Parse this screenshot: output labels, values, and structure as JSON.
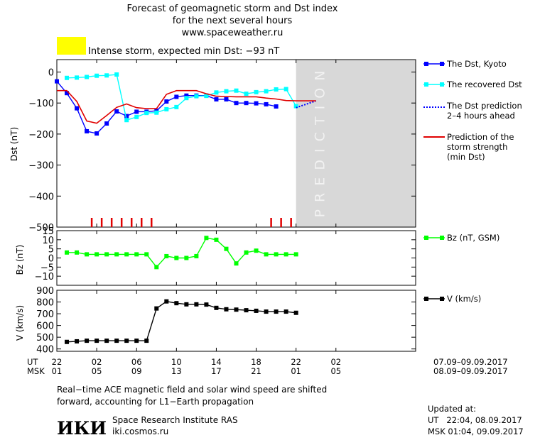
{
  "title": {
    "line1": "Forecast of geomagnetic storm and Dst index",
    "line2": "for the next several hours",
    "line3": "www.spaceweather.ru"
  },
  "alert": {
    "text": "Intense storm, expected min Dst: −93 nT",
    "color": "#ffff00"
  },
  "chart_data": [
    {
      "type": "line",
      "ylabel": "Dst (nT)",
      "ylim": [
        -500,
        40
      ],
      "yticks": [
        "0",
        "−100",
        "−200",
        "−300",
        "−400",
        "−500"
      ],
      "xlim": [
        22,
        58
      ],
      "prediction_text": "PREDICTION",
      "prediction_region": [
        46,
        58
      ],
      "markers_red_x": [
        25.5,
        26.5,
        27.5,
        28.5,
        29.5,
        30.5,
        31.5,
        43.5,
        44.5,
        45.5
      ],
      "series": [
        {
          "name": "The Dst, Kyoto",
          "color": "#0000ff",
          "x": [
            22,
            23,
            24,
            25,
            26,
            27,
            28,
            29,
            30,
            31,
            32,
            33,
            34,
            35,
            36,
            37,
            38,
            39,
            40,
            41,
            42,
            43,
            44
          ],
          "y": [
            -30,
            -68,
            -117,
            -191,
            -198,
            -166,
            -127,
            -142,
            -128,
            -128,
            -125,
            -95,
            -80,
            -76,
            -76,
            -76,
            -88,
            -88,
            -100,
            -100,
            -101,
            -104,
            -111
          ]
        },
        {
          "name": "The recovered Dst",
          "color": "#00ffff",
          "x": [
            23,
            24,
            25,
            26,
            27,
            28,
            29,
            30,
            31,
            32,
            33,
            34,
            35,
            36,
            37,
            38,
            39,
            40,
            41,
            42,
            43,
            44,
            45,
            46
          ],
          "y": [
            -19,
            -18,
            -16,
            -12,
            -11,
            -8,
            -155,
            -145,
            -132,
            -131,
            -120,
            -113,
            -84,
            -78,
            -77,
            -66,
            -62,
            -60,
            -70,
            -65,
            -62,
            -56,
            -55,
            -110
          ]
        },
        {
          "name": "The Dst prediction 2–4 hours ahead",
          "color": "#0000ff",
          "x": [
            46,
            48
          ],
          "y": [
            -115,
            -93
          ]
        },
        {
          "name": "Prediction of the storm strength (min Dst)",
          "color": "#e00000",
          "x": [
            22,
            23,
            24,
            25,
            26,
            27,
            28,
            29,
            30,
            31,
            32,
            33,
            34,
            35,
            36,
            37,
            38,
            39,
            40,
            41,
            42,
            43,
            44,
            45,
            46,
            48
          ],
          "y": [
            -60,
            -60,
            -95,
            -158,
            -165,
            -140,
            -114,
            -103,
            -115,
            -118,
            -118,
            -72,
            -60,
            -60,
            -60,
            -70,
            -78,
            -79,
            -80,
            -80,
            -80,
            -84,
            -87,
            -92,
            -93,
            -93
          ]
        }
      ]
    },
    {
      "type": "line",
      "ylabel": "Bz (nT)",
      "ylim": [
        -15,
        15
      ],
      "yticks": [
        "15",
        "10",
        "5",
        "0",
        "−5",
        "−10"
      ],
      "xlim": [
        22,
        58
      ],
      "series": [
        {
          "name": "Bz (nT, GSM)",
          "color": "#00ff00",
          "x": [
            23,
            24,
            25,
            26,
            27,
            28,
            29,
            30,
            31,
            32,
            33,
            34,
            35,
            36,
            37,
            38,
            39,
            40,
            41,
            42,
            43,
            44,
            45,
            46
          ],
          "y": [
            3,
            3,
            2,
            2,
            2,
            2,
            2,
            2,
            2,
            -5,
            1,
            0,
            0,
            1,
            11,
            10,
            5,
            -3,
            3,
            4,
            2,
            2,
            2,
            2
          ]
        }
      ]
    },
    {
      "type": "line",
      "ylabel": "V (km/s)",
      "ylim": [
        380,
        900
      ],
      "yticks": [
        "900",
        "800",
        "700",
        "600",
        "500",
        "400"
      ],
      "xlim": [
        22,
        58
      ],
      "series": [
        {
          "name": "V (km/s)",
          "color": "#000000",
          "x": [
            23,
            24,
            25,
            26,
            27,
            28,
            29,
            30,
            31,
            32,
            33,
            34,
            35,
            36,
            37,
            38,
            39,
            40,
            41,
            42,
            43,
            44,
            45,
            46
          ],
          "y": [
            460,
            465,
            470,
            470,
            470,
            470,
            470,
            470,
            470,
            745,
            805,
            790,
            780,
            780,
            778,
            750,
            738,
            735,
            730,
            725,
            718,
            718,
            718,
            708
          ]
        }
      ]
    }
  ],
  "xaxis": {
    "ut_label": "UT",
    "msk_label": "MSK",
    "ut_ticks": [
      {
        "x": 22,
        "label": "22"
      },
      {
        "x": 26,
        "label": "02"
      },
      {
        "x": 30,
        "label": "06"
      },
      {
        "x": 34,
        "label": "10"
      },
      {
        "x": 38,
        "label": "14"
      },
      {
        "x": 42,
        "label": "18"
      },
      {
        "x": 46,
        "label": "22"
      },
      {
        "x": 50,
        "label": "02"
      }
    ],
    "msk_ticks": [
      {
        "x": 22,
        "label": "01"
      },
      {
        "x": 26,
        "label": "05"
      },
      {
        "x": 30,
        "label": "09"
      },
      {
        "x": 34,
        "label": "13"
      },
      {
        "x": 38,
        "label": "17"
      },
      {
        "x": 42,
        "label": "21"
      },
      {
        "x": 46,
        "label": "01"
      },
      {
        "x": 50,
        "label": "05"
      }
    ],
    "ut_dates": "07.09–09.09.2017",
    "msk_dates": "08.09–09.09.2017"
  },
  "legend": {
    "dst_kyoto": "The Dst, Kyoto",
    "recovered": "The recovered Dst",
    "prediction_line1": "The Dst prediction",
    "prediction_line2": "2–4 hours ahead",
    "strength_line1": "Prediction of the",
    "strength_line2": "storm strength",
    "strength_line3": "(min Dst)",
    "bz": "Bz (nT, GSM)",
    "v": "V (km/s)"
  },
  "footer": {
    "note_line1": "Real−time ACE magnetic field and solar wind speed are shifted",
    "note_line2": "forward, accounting for L1−Earth propagation",
    "logo": "ИКИ",
    "institute": "Space Research Institute RAS",
    "site": "iki.cosmos.ru",
    "updated_label": "Updated at:",
    "updated_ut": "UT   22:04, 08.09.2017",
    "updated_msk": "MSK 01:04, 09.09.2017"
  }
}
